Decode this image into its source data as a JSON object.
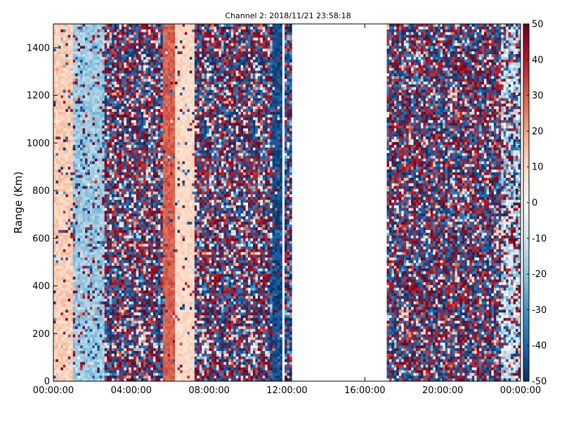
{
  "chart_data": {
    "type": "heatmap",
    "title": "Channel 2: 2018/11/21 23:58:18",
    "xlabel": "",
    "ylabel": "Range (Km)",
    "x_range_hours": [
      0,
      24
    ],
    "ylim": [
      0,
      1500
    ],
    "x_ticks": [
      {
        "value": 0,
        "label": "00:00:00"
      },
      {
        "value": 4,
        "label": "04:00:00"
      },
      {
        "value": 8,
        "label": "08:00:00"
      },
      {
        "value": 12,
        "label": "12:00:00"
      },
      {
        "value": 16,
        "label": "16:00:00"
      },
      {
        "value": 20,
        "label": "20:00:00"
      },
      {
        "value": 24,
        "label": "00:00:00"
      }
    ],
    "y_ticks": [
      0,
      200,
      400,
      600,
      800,
      1000,
      1200,
      1400
    ],
    "colorbar": {
      "min": -50,
      "max": 50,
      "ticks": [
        50,
        40,
        30,
        20,
        10,
        0,
        -10,
        -20,
        -30,
        -40,
        -50
      ],
      "colormap": "RdBu_r",
      "low_color": "#053061",
      "high_color": "#67001f"
    },
    "missing_data_hours": [
      [
        11.7,
        11.9
      ],
      [
        12.2,
        17.1
      ]
    ],
    "grid": false,
    "colormap_stops": [
      "#053061",
      "#2166ac",
      "#4393c3",
      "#92c5de",
      "#d1e5f0",
      "#f7f7f7",
      "#fddbc7",
      "#f4a582",
      "#d6604d",
      "#b2182b",
      "#67001f"
    ],
    "time_profile": [
      {
        "from": 0.0,
        "to": 1.0,
        "mean": 12,
        "spread": 10,
        "noise": 0.08
      },
      {
        "from": 1.0,
        "to": 2.6,
        "mean": -18,
        "spread": 12,
        "noise": 0.18
      },
      {
        "from": 2.6,
        "to": 5.6,
        "mean": 0,
        "spread": 50,
        "noise": 0.9
      },
      {
        "from": 5.6,
        "to": 6.2,
        "mean": 30,
        "spread": 8,
        "noise": 0.05
      },
      {
        "from": 6.2,
        "to": 7.2,
        "mean": 10,
        "spread": 8,
        "noise": 0.1
      },
      {
        "from": 7.2,
        "to": 11.2,
        "mean": -5,
        "spread": 50,
        "noise": 0.9
      },
      {
        "from": 11.2,
        "to": 11.7,
        "mean": -45,
        "spread": 10,
        "noise": 0.15
      },
      {
        "from": 11.9,
        "to": 12.2,
        "mean": -40,
        "spread": 40,
        "noise": 0.6
      },
      {
        "from": 17.1,
        "to": 23.0,
        "mean": 0,
        "spread": 50,
        "noise": 0.95
      },
      {
        "from": 23.0,
        "to": 24.0,
        "mean": -12,
        "spread": 25,
        "noise": 0.4
      }
    ]
  }
}
